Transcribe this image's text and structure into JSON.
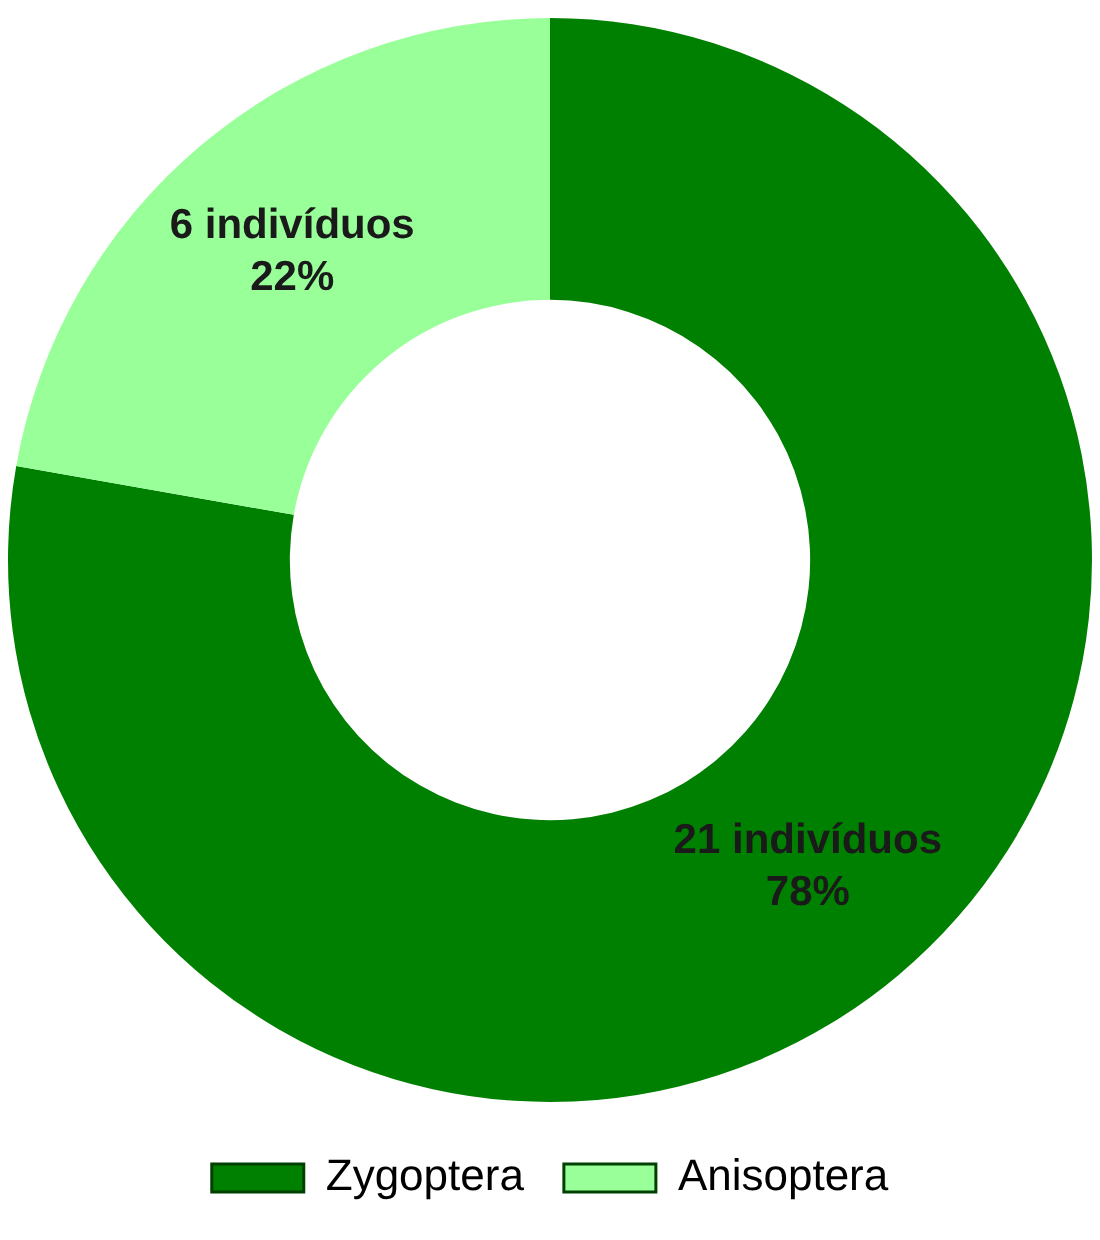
{
  "chart_data": {
    "type": "donut",
    "categories": [
      "Zygoptera",
      "Anisoptera"
    ],
    "values": [
      21,
      6
    ],
    "colors": [
      "#008000",
      "#99ff99"
    ],
    "value_labels": [
      "21 indivíduos\n78%",
      "6 indivíduos\n22%"
    ],
    "legend": "bottom"
  }
}
